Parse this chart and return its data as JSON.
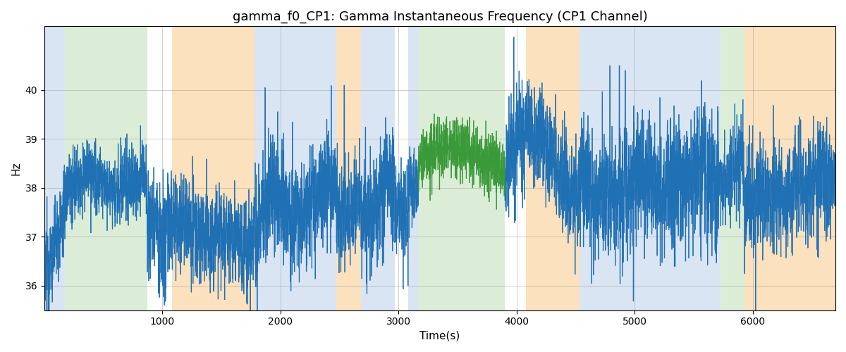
{
  "title": "gamma_f0_CP1: Gamma Instantaneous Frequency (CP1 Channel)",
  "xlabel": "Time(s)",
  "ylabel": "Hz",
  "ylim": [
    35.5,
    41.3
  ],
  "xlim": [
    0,
    6700
  ],
  "yticks": [
    36,
    37,
    38,
    39,
    40
  ],
  "xticks": [
    1000,
    2000,
    3000,
    4000,
    5000,
    6000
  ],
  "line_color": "#2070b4",
  "green_line_color": "#3a9a3a",
  "bg_bands": [
    {
      "xmin": 0,
      "xmax": 175,
      "color": "#aec6e8",
      "alpha": 0.45
    },
    {
      "xmin": 175,
      "xmax": 870,
      "color": "#b2d8a8",
      "alpha": 0.45
    },
    {
      "xmin": 870,
      "xmax": 1080,
      "color": "#aec6e8",
      "alpha": 0.01
    },
    {
      "xmin": 1080,
      "xmax": 1780,
      "color": "#f9c98a",
      "alpha": 0.55
    },
    {
      "xmin": 1780,
      "xmax": 2470,
      "color": "#aec6e8",
      "alpha": 0.45
    },
    {
      "xmin": 2470,
      "xmax": 2680,
      "color": "#f9c98a",
      "alpha": 0.55
    },
    {
      "xmin": 2680,
      "xmax": 2970,
      "color": "#aec6e8",
      "alpha": 0.45
    },
    {
      "xmin": 2970,
      "xmax": 3080,
      "color": "#f9c98a",
      "alpha": 0.01
    },
    {
      "xmin": 3080,
      "xmax": 3170,
      "color": "#aec6e8",
      "alpha": 0.45
    },
    {
      "xmin": 3170,
      "xmax": 3900,
      "color": "#b2d8a8",
      "alpha": 0.45
    },
    {
      "xmin": 3900,
      "xmax": 4080,
      "color": "#aec6e8",
      "alpha": 0.01
    },
    {
      "xmin": 4080,
      "xmax": 4530,
      "color": "#f9c98a",
      "alpha": 0.55
    },
    {
      "xmin": 4530,
      "xmax": 5720,
      "color": "#aec6e8",
      "alpha": 0.45
    },
    {
      "xmin": 5720,
      "xmax": 5930,
      "color": "#b2d8a8",
      "alpha": 0.45
    },
    {
      "xmin": 5930,
      "xmax": 6700,
      "color": "#f9c98a",
      "alpha": 0.55
    }
  ],
  "green_segments": [
    [
      3170,
      3900
    ]
  ],
  "seed": 12345,
  "n_points": 6700,
  "x_start": 0,
  "x_end": 6699
}
